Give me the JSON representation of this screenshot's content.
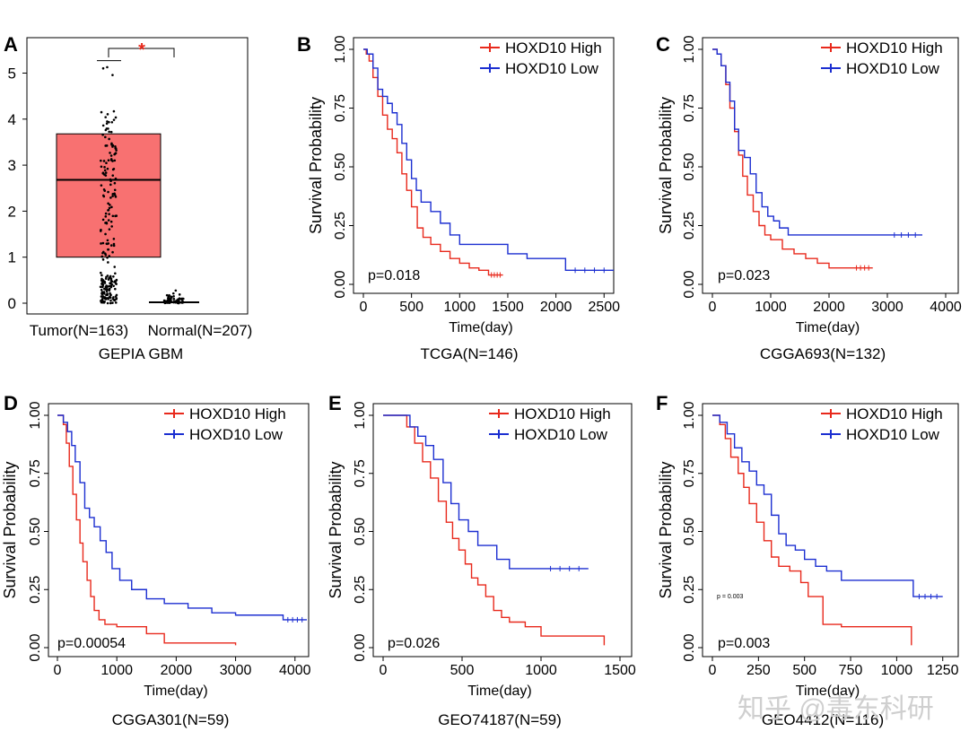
{
  "figure": {
    "watermark": "知乎 @毒东科研",
    "colors": {
      "high": "#e8291c",
      "low": "#1c2fd1",
      "box": "#f87171",
      "star": "#e8291c"
    }
  },
  "panel_a": {
    "letter": "A",
    "caption": "GEPIA GBM",
    "star": "*",
    "yticks": [
      "0",
      "1",
      "2",
      "3",
      "4",
      "5"
    ],
    "groups": [
      "Tumor(N=163)",
      "Normal(N=207)"
    ]
  },
  "panels": [
    {
      "letter": "B",
      "caption": "TCGA(N=146)",
      "xlabel": "Time(day)",
      "ylabel": "Survival Probability",
      "pvalue": "p=0.018",
      "legend": [
        "HOXD10 High",
        "HOXD10 Low"
      ],
      "xticks": [
        "0",
        "500",
        "1000",
        "1500",
        "2000",
        "2500"
      ],
      "yticks": [
        "0.00",
        "0.25",
        "0.50",
        "0.75",
        "1.00"
      ]
    },
    {
      "letter": "C",
      "caption": "CGGA693(N=132)",
      "xlabel": "Time(day)",
      "ylabel": "Survival Probability",
      "pvalue": "p=0.023",
      "legend": [
        "HOXD10 High",
        "HOXD10 Low"
      ],
      "xticks": [
        "0",
        "1000",
        "2000",
        "3000",
        "4000"
      ],
      "yticks": [
        "0.00",
        "0.25",
        "0.50",
        "0.75",
        "1.00"
      ]
    },
    {
      "letter": "D",
      "caption": "CGGA301(N=59)",
      "xlabel": "Time(day)",
      "ylabel": "Survival Probability",
      "pvalue": "p=0.00054",
      "legend": [
        "HOXD10 High",
        "HOXD10 Low"
      ],
      "xticks": [
        "0",
        "1000",
        "2000",
        "3000",
        "4000"
      ],
      "yticks": [
        "0.00",
        "0.25",
        "0.50",
        "0.75",
        "1.00"
      ]
    },
    {
      "letter": "E",
      "caption": "GEO74187(N=59)",
      "xlabel": "Time(day)",
      "ylabel": "Survival Probability",
      "pvalue": "p=0.026",
      "legend": [
        "HOXD10 High",
        "HOXD10 Low"
      ],
      "xticks": [
        "0",
        "500",
        "1000",
        "1500"
      ],
      "yticks": [
        "0.00",
        "0.25",
        "0.50",
        "0.75",
        "1.00"
      ]
    },
    {
      "letter": "F",
      "caption": "GEO4412(N=116)",
      "xlabel": "Time(day)",
      "ylabel": "Survival Probability",
      "pvalue": "p=0.003",
      "pvalue_small": "p = 0.003",
      "legend": [
        "HOXD10 High",
        "HOXD10 Low"
      ],
      "xticks": [
        "0",
        "250",
        "500",
        "750",
        "1000",
        "1250"
      ],
      "yticks": [
        "0.00",
        "0.25",
        "0.50",
        "0.75",
        "1.00"
      ]
    }
  ],
  "chart_data": [
    {
      "type": "box",
      "panel": "A",
      "categories": [
        "Tumor(N=163)",
        "Normal(N=207)"
      ],
      "ylim": [
        0,
        5.5
      ],
      "boxes": [
        {
          "name": "Tumor(N=163)",
          "q1": 1.0,
          "median": 2.68,
          "q3": 3.68,
          "min": 0.02,
          "max": 5.27
        },
        {
          "name": "Normal(N=207)",
          "q1": 0.02,
          "median": 0.02,
          "q3": 0.02,
          "min": 0.0,
          "max": 0.3
        }
      ],
      "significance": "*"
    },
    {
      "type": "line",
      "panel": "B",
      "xlim": [
        0,
        2600
      ],
      "ylim": [
        0,
        1
      ],
      "series": [
        {
          "name": "HOXD10 High",
          "color": "#e8291c",
          "x": [
            0,
            30,
            60,
            100,
            150,
            200,
            250,
            300,
            350,
            400,
            450,
            500,
            560,
            620,
            700,
            800,
            900,
            1000,
            1100,
            1200,
            1300,
            1450
          ],
          "y": [
            1.0,
            0.98,
            0.95,
            0.88,
            0.8,
            0.72,
            0.66,
            0.62,
            0.56,
            0.47,
            0.4,
            0.33,
            0.24,
            0.2,
            0.17,
            0.14,
            0.11,
            0.09,
            0.07,
            0.06,
            0.04,
            0.04
          ]
        },
        {
          "name": "HOXD10 Low",
          "color": "#1c2fd1",
          "x": [
            0,
            40,
            100,
            150,
            200,
            250,
            300,
            350,
            400,
            450,
            500,
            550,
            600,
            700,
            800,
            900,
            1000,
            1200,
            1500,
            1700,
            2100,
            2600
          ],
          "y": [
            1.0,
            0.98,
            0.92,
            0.83,
            0.8,
            0.77,
            0.73,
            0.68,
            0.6,
            0.53,
            0.45,
            0.4,
            0.35,
            0.31,
            0.26,
            0.21,
            0.17,
            0.17,
            0.13,
            0.11,
            0.06,
            0.06
          ]
        }
      ]
    },
    {
      "type": "line",
      "panel": "C",
      "xlim": [
        0,
        4000
      ],
      "ylim": [
        0,
        1
      ],
      "series": [
        {
          "name": "HOXD10 High",
          "color": "#e8291c",
          "x": [
            0,
            80,
            150,
            230,
            300,
            380,
            450,
            520,
            600,
            700,
            800,
            900,
            1000,
            1200,
            1400,
            1600,
            1800,
            2000,
            2400,
            2750
          ],
          "y": [
            1.0,
            0.98,
            0.93,
            0.85,
            0.75,
            0.65,
            0.55,
            0.46,
            0.38,
            0.31,
            0.25,
            0.21,
            0.19,
            0.15,
            0.13,
            0.11,
            0.09,
            0.07,
            0.07,
            0.07
          ]
        },
        {
          "name": "HOXD10 Low",
          "color": "#1c2fd1",
          "x": [
            0,
            80,
            150,
            230,
            300,
            380,
            450,
            550,
            650,
            750,
            850,
            950,
            1050,
            1150,
            1300,
            2000,
            3000,
            3600
          ],
          "y": [
            1.0,
            0.98,
            0.93,
            0.86,
            0.78,
            0.66,
            0.57,
            0.54,
            0.47,
            0.39,
            0.33,
            0.29,
            0.27,
            0.24,
            0.21,
            0.21,
            0.21,
            0.21
          ]
        }
      ]
    },
    {
      "type": "line",
      "panel": "D",
      "xlim": [
        0,
        4200
      ],
      "ylim": [
        0,
        1
      ],
      "series": [
        {
          "name": "HOXD10 High",
          "color": "#e8291c",
          "x": [
            0,
            100,
            150,
            200,
            260,
            320,
            380,
            430,
            500,
            560,
            620,
            700,
            800,
            1000,
            1500,
            1800,
            3000
          ],
          "y": [
            1.0,
            0.96,
            0.88,
            0.78,
            0.66,
            0.55,
            0.45,
            0.37,
            0.29,
            0.22,
            0.16,
            0.12,
            0.1,
            0.09,
            0.06,
            0.02,
            0.01
          ]
        },
        {
          "name": "HOXD10 Low",
          "color": "#1c2fd1",
          "x": [
            0,
            100,
            170,
            240,
            300,
            380,
            460,
            540,
            620,
            720,
            820,
            920,
            1050,
            1250,
            1500,
            1800,
            2200,
            2600,
            3000,
            3800,
            4200
          ],
          "y": [
            1.0,
            0.97,
            0.93,
            0.87,
            0.8,
            0.71,
            0.6,
            0.56,
            0.52,
            0.46,
            0.41,
            0.34,
            0.29,
            0.25,
            0.21,
            0.19,
            0.17,
            0.15,
            0.14,
            0.12,
            0.12
          ]
        }
      ]
    },
    {
      "type": "line",
      "panel": "E",
      "xlim": [
        0,
        1500
      ],
      "ylim": [
        0,
        1
      ],
      "series": [
        {
          "name": "HOXD10 High",
          "color": "#e8291c",
          "x": [
            0,
            150,
            200,
            250,
            300,
            350,
            400,
            440,
            480,
            520,
            560,
            600,
            650,
            700,
            750,
            800,
            900,
            1000,
            1100,
            1400
          ],
          "y": [
            1.0,
            0.95,
            0.88,
            0.8,
            0.73,
            0.63,
            0.54,
            0.47,
            0.42,
            0.36,
            0.3,
            0.27,
            0.22,
            0.16,
            0.13,
            0.11,
            0.09,
            0.05,
            0.05,
            0.01
          ]
        },
        {
          "name": "HOXD10 Low",
          "color": "#1c2fd1",
          "x": [
            0,
            170,
            220,
            270,
            320,
            380,
            430,
            480,
            540,
            600,
            650,
            720,
            800,
            1000,
            1300
          ],
          "y": [
            1.0,
            0.95,
            0.91,
            0.87,
            0.81,
            0.71,
            0.62,
            0.55,
            0.5,
            0.44,
            0.44,
            0.38,
            0.34,
            0.34,
            0.34
          ]
        }
      ]
    },
    {
      "type": "line",
      "panel": "F",
      "xlim": [
        0,
        1300
      ],
      "ylim": [
        0,
        1
      ],
      "series": [
        {
          "name": "HOXD10 High",
          "color": "#e8291c",
          "x": [
            0,
            40,
            70,
            100,
            140,
            170,
            200,
            240,
            280,
            320,
            360,
            420,
            480,
            520,
            600,
            700,
            800,
            1000,
            1080
          ],
          "y": [
            1.0,
            0.96,
            0.9,
            0.82,
            0.75,
            0.69,
            0.62,
            0.54,
            0.46,
            0.39,
            0.35,
            0.33,
            0.28,
            0.22,
            0.1,
            0.09,
            0.09,
            0.09,
            0.01
          ]
        },
        {
          "name": "HOXD10 Low",
          "color": "#1c2fd1",
          "x": [
            0,
            40,
            80,
            120,
            160,
            200,
            240,
            280,
            320,
            360,
            400,
            450,
            500,
            560,
            620,
            700,
            850,
            1000,
            1090,
            1250
          ],
          "y": [
            1.0,
            0.97,
            0.92,
            0.86,
            0.8,
            0.76,
            0.7,
            0.66,
            0.57,
            0.49,
            0.44,
            0.42,
            0.38,
            0.35,
            0.33,
            0.29,
            0.29,
            0.29,
            0.22,
            0.22
          ]
        }
      ]
    }
  ]
}
